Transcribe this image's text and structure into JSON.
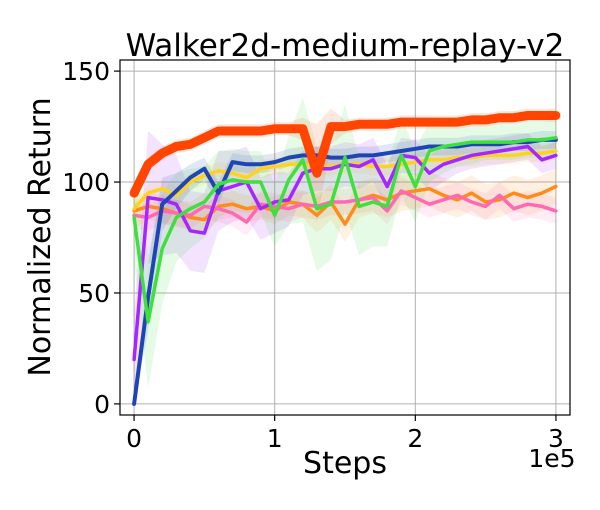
{
  "chart_data": {
    "type": "line",
    "title": "Walker2d-medium-replay-v2",
    "xlabel": "Steps",
    "ylabel": "Normalized Return",
    "x_offset_label": "1e5",
    "xlim": [
      -0.1,
      3.1
    ],
    "ylim": [
      -5,
      155
    ],
    "xticks": [
      0,
      1,
      2,
      3
    ],
    "xtick_labels": [
      "0",
      "1",
      "2",
      "3"
    ],
    "yticks": [
      0,
      50,
      100,
      150
    ],
    "ytick_labels": [
      "0",
      "50",
      "100",
      "150"
    ],
    "grid": true,
    "x": [
      0,
      0.1,
      0.2,
      0.3,
      0.4,
      0.5,
      0.6,
      0.7,
      0.8,
      0.9,
      1.0,
      1.1,
      1.2,
      1.3,
      1.4,
      1.5,
      1.6,
      1.7,
      1.8,
      1.9,
      2.0,
      2.1,
      2.2,
      2.3,
      2.4,
      2.5,
      2.6,
      2.7,
      2.8,
      2.9,
      3.0
    ],
    "series": [
      {
        "color": "#ff8c1a",
        "width": 3.5,
        "values": [
          87,
          89,
          88,
          86,
          84,
          83,
          89,
          90,
          88,
          89,
          87,
          91,
          90,
          85,
          91,
          81,
          92,
          94,
          92,
          95,
          96,
          97,
          94,
          92,
          95,
          91,
          92,
          95,
          93,
          95,
          98
        ],
        "band": [
          8,
          6,
          6,
          6,
          6,
          6,
          6,
          6,
          6,
          6,
          6,
          6,
          6,
          8,
          8,
          8,
          8,
          8,
          8,
          8,
          8,
          8,
          8,
          8,
          8,
          8,
          8,
          8,
          8,
          8,
          8
        ]
      },
      {
        "color": "#ff69b4",
        "width": 3.5,
        "values": [
          85,
          84,
          87,
          86,
          85,
          89,
          88,
          86,
          82,
          90,
          89,
          88,
          90,
          89,
          91,
          91,
          92,
          93,
          87,
          96,
          93,
          90,
          92,
          94,
          91,
          89,
          94,
          88,
          90,
          89,
          87
        ],
        "band": [
          6,
          6,
          6,
          6,
          6,
          6,
          6,
          6,
          6,
          6,
          6,
          6,
          6,
          6,
          6,
          6,
          6,
          6,
          6,
          6,
          6,
          6,
          6,
          6,
          6,
          6,
          6,
          6,
          6,
          6,
          6
        ]
      },
      {
        "color": "#ffd21f",
        "width": 3.5,
        "values": [
          88,
          95,
          97,
          94,
          100,
          103,
          105,
          104,
          102,
          106,
          107,
          108,
          108,
          107,
          107,
          108,
          108,
          107,
          107,
          108,
          109,
          110,
          110,
          111,
          111,
          112,
          112,
          112,
          113,
          113,
          114
        ],
        "band": [
          4,
          4,
          4,
          4,
          4,
          4,
          4,
          4,
          4,
          4,
          4,
          4,
          4,
          4,
          4,
          4,
          4,
          4,
          4,
          4,
          4,
          4,
          4,
          4,
          4,
          4,
          4,
          4,
          4,
          4,
          4
        ]
      },
      {
        "color": "#a626ff",
        "width": 3.5,
        "values": [
          20,
          93,
          92,
          90,
          78,
          77,
          96,
          98,
          100,
          88,
          91,
          92,
          104,
          106,
          106,
          108,
          107,
          110,
          98,
          112,
          111,
          104,
          108,
          110,
          112,
          113,
          114,
          115,
          116,
          110,
          112
        ],
        "band": [
          20,
          30,
          25,
          22,
          18,
          18,
          18,
          16,
          16,
          14,
          14,
          12,
          10,
          10,
          10,
          10,
          10,
          10,
          10,
          8,
          8,
          8,
          8,
          6,
          6,
          6,
          6,
          6,
          6,
          6,
          6
        ]
      },
      {
        "color": "#1f45b5",
        "width": 4,
        "values": [
          0,
          48,
          90,
          96,
          102,
          106,
          95,
          109,
          108,
          108,
          109,
          111,
          112,
          112,
          111,
          111,
          112,
          112,
          113,
          114,
          115,
          116,
          116,
          116,
          117,
          117,
          117,
          118,
          118,
          119,
          119
        ],
        "band": [
          0,
          15,
          12,
          8,
          6,
          5,
          5,
          4,
          4,
          4,
          4,
          4,
          4,
          4,
          4,
          4,
          4,
          4,
          4,
          4,
          4,
          4,
          4,
          4,
          4,
          4,
          4,
          4,
          4,
          4,
          4
        ]
      },
      {
        "color": "#3ee03e",
        "width": 3.5,
        "values": [
          84,
          37,
          70,
          84,
          88,
          91,
          99,
          101,
          100,
          100,
          85,
          101,
          110,
          88,
          90,
          111,
          89,
          91,
          89,
          112,
          98,
          114,
          116,
          117,
          118,
          118,
          118,
          118,
          119,
          119,
          120
        ],
        "band": [
          20,
          30,
          25,
          20,
          18,
          16,
          15,
          14,
          14,
          14,
          14,
          20,
          28,
          28,
          25,
          24,
          22,
          20,
          18,
          18,
          16,
          14,
          12,
          10,
          10,
          8,
          8,
          8,
          8,
          8,
          8
        ]
      },
      {
        "color": "#ff4500",
        "width": 9,
        "values": [
          95,
          108,
          113,
          116,
          117,
          120,
          123,
          123,
          123,
          123,
          124,
          124,
          124,
          104,
          125,
          125,
          126,
          126,
          126,
          127,
          127,
          127,
          127,
          127,
          128,
          128,
          129,
          129,
          130,
          130,
          130
        ],
        "band": [
          3,
          3,
          3,
          3,
          3,
          3,
          3,
          3,
          3,
          3,
          3,
          3,
          5,
          22,
          8,
          3,
          3,
          3,
          3,
          3,
          3,
          3,
          3,
          3,
          3,
          3,
          3,
          3,
          3,
          3,
          3
        ]
      }
    ]
  }
}
